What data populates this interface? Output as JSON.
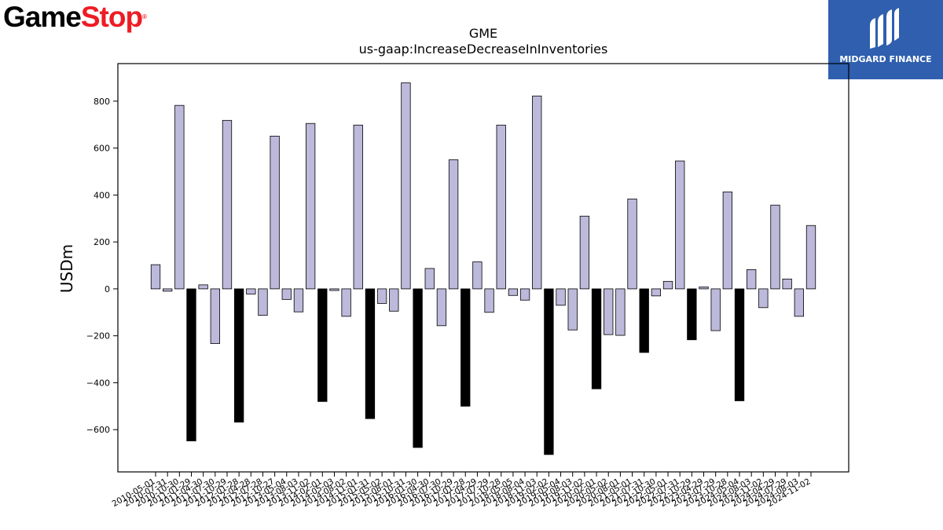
{
  "logos": {
    "left": {
      "part1": "Game",
      "part2": "Stop",
      "reg": "®"
    },
    "right": {
      "text": "MIDGARD FINANCE"
    }
  },
  "colors": {
    "positive": "#bcb9db",
    "negative": "#000000",
    "bar_edge": "#000000",
    "gamestop_red": "#ee1c24",
    "midgard_blue": "#2f5fae"
  },
  "chart_data": {
    "type": "bar",
    "title": "GME",
    "subtitle": "us-gaap:IncreaseDecreaseInInventories",
    "ylabel": "USDm",
    "xlabel": "",
    "ylim": [
      -780,
      960
    ],
    "yticks": [
      -600,
      -400,
      -200,
      0,
      200,
      400,
      600,
      800
    ],
    "ytick_labels": [
      "−600",
      "−400",
      "−200",
      "0",
      "200",
      "400",
      "600",
      "800"
    ],
    "grid": false,
    "legend": "none",
    "categories": [
      "2010-05-01",
      "2010-07-31",
      "2010-10-30",
      "2011-01-29",
      "2011-04-30",
      "2011-07-30",
      "2011-10-29",
      "2012-01-28",
      "2012-04-28",
      "2012-07-28",
      "2012-10-27",
      "2013-05-04",
      "2013-08-03",
      "2013-11-02",
      "2014-02-01",
      "2014-05-03",
      "2014-08-02",
      "2014-11-01",
      "2015-01-31",
      "2015-05-02",
      "2015-08-01",
      "2015-10-31",
      "2016-01-30",
      "2016-04-30",
      "2016-07-30",
      "2016-10-29",
      "2017-01-28",
      "2017-04-29",
      "2017-07-29",
      "2017-10-28",
      "2018-05-05",
      "2018-08-04",
      "2018-11-03",
      "2019-02-02",
      "2019-05-04",
      "2019-08-03",
      "2019-11-02",
      "2020-02-01",
      "2020-05-02",
      "2020-08-01",
      "2021-05-01",
      "2021-07-31",
      "2021-10-30",
      "2022-05-01",
      "2022-07-31",
      "2022-10-29",
      "2023-04-29",
      "2023-07-29",
      "2023-10-28",
      "2024-05-04",
      "2024-08-03",
      "2024-11-02",
      "2024-04-29",
      "2024-07-29",
      "2024-08-03",
      "2024-11-02"
    ],
    "xtick_labels": [
      "2010-05-01",
      "2010-07-31",
      "2010-10-30",
      "2011-01-29",
      "2011-04-30",
      "2011-07-30",
      "2011-10-29",
      "2012-01-28",
      "2012-04-28",
      "2012-07-28",
      "2012-10-27",
      "2013-05-04",
      "2013-08-03",
      "2013-11-02",
      "2014-02-01",
      "2014-05-03",
      "2014-08-02",
      "2014-11-01",
      "2015-01-31",
      "2015-05-02",
      "2015-08-01",
      "2015-10-31",
      "2016-01-30",
      "2016-04-30",
      "2016-07-30",
      "2016-10-29",
      "2017-01-28",
      "2017-04-29",
      "2017-07-29",
      "2017-10-28",
      "2018-05-05",
      "2018-08-04",
      "2018-11-03",
      "2019-02-02",
      "2019-05-04",
      "2019-08-03",
      "2019-11-02",
      "2020-02-01",
      "2020-05-02",
      "2020-08-01",
      "2021-05-01",
      "2021-07-31",
      "2021-10-30",
      "2022-05-01",
      "2022-07-31",
      "2022-10-29",
      "2023-04-29",
      "2023-07-29",
      "2023-10-28",
      "2024-05-04",
      "2024-08-03",
      "2024-11-02",
      "2024-04-29",
      "2024-07-29",
      "2024-08-03",
      "2024-11-02"
    ],
    "values": [
      103,
      -10,
      782,
      -648,
      17,
      -233,
      718,
      -568,
      -22,
      -113,
      651,
      -45,
      -98,
      705,
      -480,
      -7,
      -117,
      698,
      -553,
      -62,
      -95,
      878,
      -676,
      87,
      -157,
      550,
      -500,
      115,
      -100,
      698,
      -28,
      -48,
      822,
      -706,
      -70,
      -175,
      310,
      -426,
      -195,
      -198,
      383,
      -271,
      -30,
      32,
      545,
      -217,
      8,
      -178,
      413,
      -477,
      82,
      -80,
      357,
      42,
      -117,
      270
    ],
    "highlighted": [
      false,
      false,
      false,
      true,
      false,
      false,
      false,
      true,
      false,
      false,
      false,
      false,
      false,
      false,
      true,
      false,
      false,
      false,
      true,
      false,
      false,
      false,
      true,
      false,
      false,
      false,
      true,
      false,
      false,
      false,
      false,
      false,
      false,
      true,
      false,
      false,
      false,
      true,
      false,
      false,
      false,
      true,
      false,
      false,
      false,
      true,
      false,
      false,
      false,
      true,
      false,
      false,
      false,
      false,
      false,
      false
    ]
  }
}
